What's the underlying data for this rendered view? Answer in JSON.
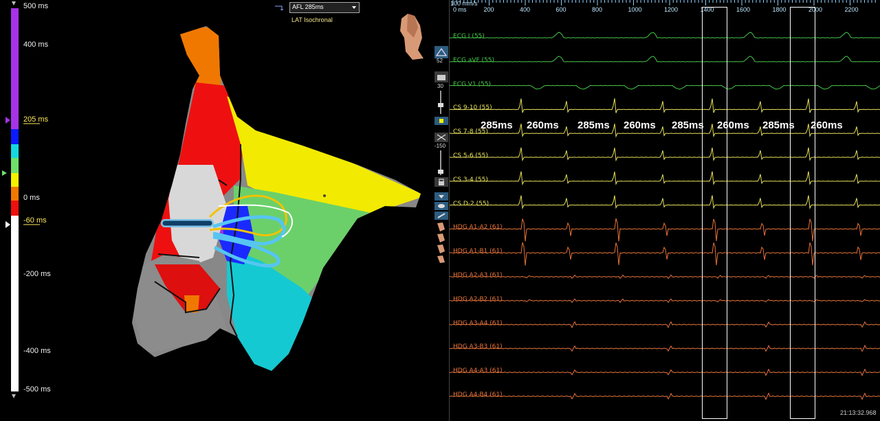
{
  "colorbar": {
    "labels": [
      {
        "text": "500 ms",
        "color": "#f0f0f0"
      },
      {
        "text": "400 ms",
        "color": "#f0f0f0"
      },
      {
        "text": "205 ms",
        "color": "#ffe95a"
      },
      {
        "text": "0 ms",
        "color": "#f0f0f0"
      },
      {
        "text": "-60 ms",
        "color": "#ffe95a"
      },
      {
        "text": "-200 ms",
        "color": "#f0f0f0"
      },
      {
        "text": "-400 ms",
        "color": "#f0f0f0"
      },
      {
        "text": "-500 ms",
        "color": "#f0f0f0"
      }
    ],
    "colors": {
      "purple": "#a633e8",
      "blue": "#0a1cff",
      "cyan": "#15d8e0",
      "green": "#70e06c",
      "yellow": "#f5f000",
      "orange": "#f07800",
      "red": "#ee1010",
      "white": "#ffffff"
    }
  },
  "map": {
    "dropdown_value": "AFL 285ms",
    "mode_label": "LAT Isochronal"
  },
  "toolbar": {
    "counter_value": "52",
    "zoom_value": "30",
    "offset_value": "-150"
  },
  "ruler": {
    "scale_label": "100 mm/s",
    "ticks": [
      "0 ms",
      "200",
      "400",
      "600",
      "800",
      "1000",
      "1200",
      "1400",
      "1600",
      "1800",
      "2000",
      "2200"
    ]
  },
  "channels": [
    {
      "label": "ECG I (55)",
      "color": "#46c84a"
    },
    {
      "label": "ECG aVF (55)",
      "color": "#46c84a"
    },
    {
      "label": "ECG V1 (55)",
      "color": "#46c84a"
    },
    {
      "label": "CS  9-10 (55)",
      "color": "#e8e25a"
    },
    {
      "label": "CS  7-8 (55)",
      "color": "#e8e25a"
    },
    {
      "label": "CS  5-6 (55)",
      "color": "#e8e25a"
    },
    {
      "label": "CS  3-4 (55)",
      "color": "#e8e25a"
    },
    {
      "label": "CS  D-2 (55)",
      "color": "#e8e25a"
    },
    {
      "label": "HDG  A1-A2 (61)",
      "color": "#e8743a"
    },
    {
      "label": "HDG  A1-B1 (61)",
      "color": "#e8743a"
    },
    {
      "label": "HDG  A2-A3 (61)",
      "color": "#e8743a"
    },
    {
      "label": "HDG  A2-B2 (61)",
      "color": "#e8743a"
    },
    {
      "label": "HDG  A3-A4 (61)",
      "color": "#e8743a"
    },
    {
      "label": "HDG  A3-B3 (61)",
      "color": "#e8743a"
    },
    {
      "label": "HDG  A4-A3 (61)",
      "color": "#e8743a"
    },
    {
      "label": "HDG  A4-B4 (61)",
      "color": "#e8743a"
    }
  ],
  "cycle_lengths": [
    "285ms",
    "260ms",
    "285ms",
    "260ms",
    "285ms",
    "260ms",
    "285ms",
    "260ms"
  ],
  "timestamp": "21:13:32.968"
}
